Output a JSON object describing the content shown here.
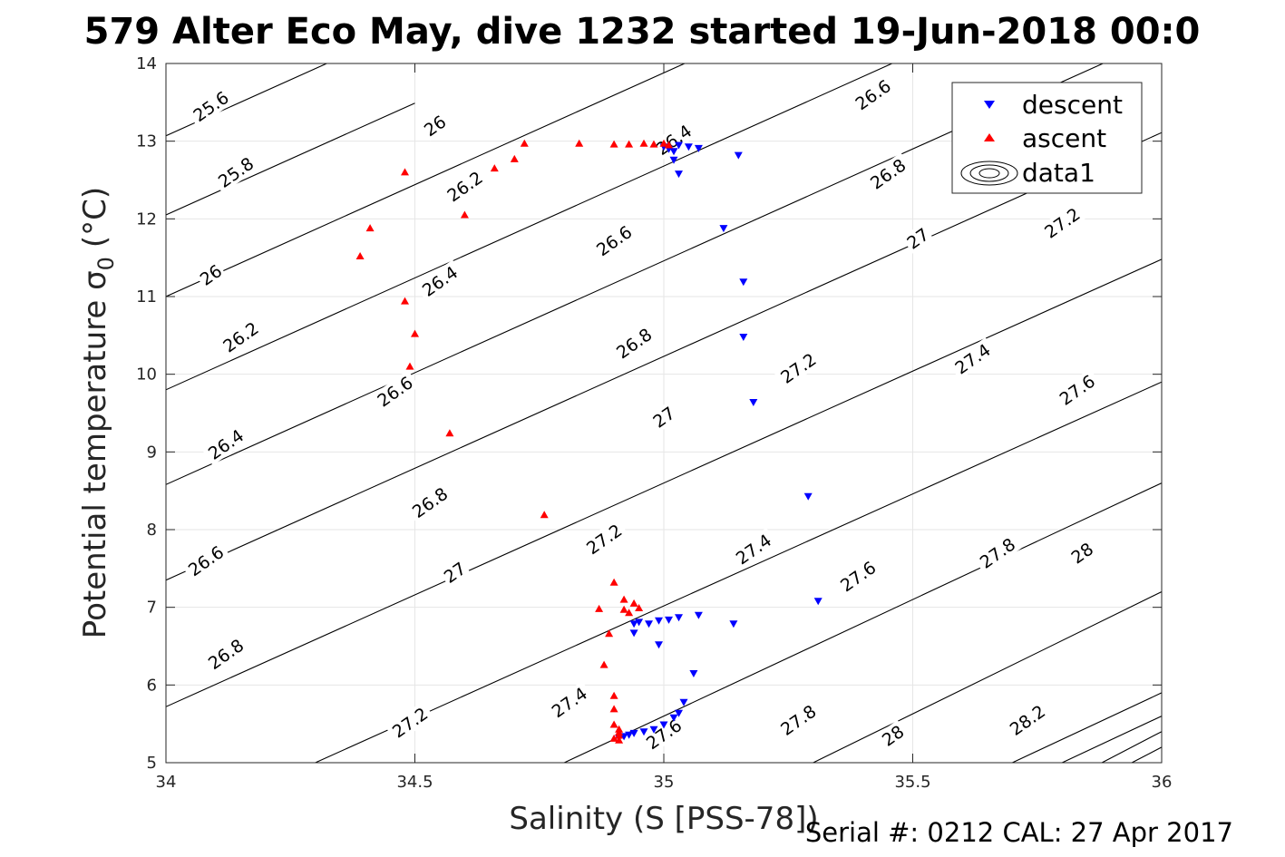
{
  "chart_data": {
    "type": "scatter",
    "title": "579 Alter Eco May, dive 1232 started 19-Jun-2018 00:0",
    "xlabel": "Salinity (S [PSS-78])",
    "ylabel_main": "Potential temperature σ",
    "ylabel_sub": "0",
    "ylabel_unit": "(°C)",
    "xlim": [
      34,
      36
    ],
    "ylim": [
      5,
      14
    ],
    "xticks": [
      34,
      34.5,
      35,
      35.5,
      36
    ],
    "yticks": [
      5,
      6,
      7,
      8,
      9,
      10,
      11,
      12,
      13,
      14
    ],
    "grid": true,
    "legend_position": "top-right",
    "colors": {
      "descent": "#0000ff",
      "ascent": "#ff0000",
      "contour": "#000000"
    },
    "series": [
      {
        "name": "descent",
        "marker": "triangle-down",
        "x": [
          35.0,
          35.01,
          35.02,
          35.03,
          35.05,
          35.07,
          35.15,
          35.02,
          35.03,
          35.12,
          35.16,
          35.16,
          35.18,
          35.29,
          35.31,
          34.94,
          34.95,
          34.97,
          34.99,
          35.01,
          35.03,
          35.07,
          35.14,
          34.94,
          34.99,
          35.06,
          35.04,
          35.03,
          35.02,
          35.0,
          34.98,
          34.96,
          34.94,
          34.93,
          34.92,
          34.91
        ],
        "y": [
          12.93,
          12.9,
          12.87,
          12.95,
          12.93,
          12.91,
          12.82,
          12.76,
          12.58,
          11.88,
          11.19,
          10.48,
          9.64,
          8.43,
          7.08,
          6.79,
          6.81,
          6.79,
          6.83,
          6.84,
          6.87,
          6.9,
          6.79,
          6.67,
          6.52,
          6.15,
          5.78,
          5.64,
          5.58,
          5.49,
          5.43,
          5.4,
          5.38,
          5.36,
          5.34,
          5.32
        ]
      },
      {
        "name": "ascent",
        "marker": "triangle-up",
        "x": [
          34.72,
          34.83,
          34.9,
          34.93,
          34.96,
          34.98,
          35.0,
          35.01,
          34.7,
          34.66,
          34.6,
          34.48,
          34.41,
          34.39,
          34.48,
          34.5,
          34.49,
          34.57,
          34.76,
          34.9,
          34.92,
          34.87,
          34.94,
          34.95,
          34.93,
          34.92,
          34.89,
          34.88,
          34.9,
          34.9,
          34.9,
          34.91,
          34.91,
          34.91,
          34.9,
          34.91
        ],
        "y": [
          12.97,
          12.97,
          12.96,
          12.96,
          12.97,
          12.96,
          12.97,
          12.95,
          12.77,
          12.65,
          12.05,
          12.6,
          11.88,
          11.52,
          10.94,
          10.52,
          10.1,
          9.24,
          8.19,
          7.32,
          7.1,
          6.98,
          7.05,
          6.99,
          6.93,
          6.97,
          6.66,
          6.26,
          5.86,
          5.69,
          5.49,
          5.43,
          5.39,
          5.35,
          5.31,
          5.29
        ]
      }
    ],
    "contours": [
      {
        "label": "25.6",
        "x": [
          34.0,
          34.5
        ],
        "y": [
          13.07,
          14.51
        ]
      },
      {
        "label": "25.8",
        "x": [
          34.0,
          34.5
        ],
        "y": [
          12.05,
          13.49
        ]
      },
      {
        "label": "26",
        "x": [
          34.0,
          36.0
        ],
        "y": [
          11.0,
          16.76
        ]
      },
      {
        "label": "26.2",
        "x": [
          34.0,
          36.0
        ],
        "y": [
          9.8,
          15.56
        ]
      },
      {
        "label": "26.4",
        "x": [
          34.0,
          36.0
        ],
        "y": [
          8.58,
          14.34
        ]
      },
      {
        "label": "26.6",
        "x": [
          34.0,
          36.0
        ],
        "y": [
          7.35,
          13.11
        ]
      },
      {
        "label": "26.8",
        "x": [
          34.0,
          36.0
        ],
        "y": [
          5.72,
          11.48
        ]
      },
      {
        "label": "27",
        "x": [
          34.3,
          36.0
        ],
        "y": [
          5.0,
          9.9
        ]
      },
      {
        "label": "27.2",
        "x": [
          34.8,
          36.0
        ],
        "y": [
          5.0,
          8.6
        ]
      },
      {
        "label": "27.4",
        "x": [
          35.3,
          36.0
        ],
        "y": [
          5.0,
          7.2
        ]
      },
      {
        "label": "27.6",
        "x": [
          35.7,
          36.0
        ],
        "y": [
          5.0,
          5.9
        ]
      },
      {
        "label": "27.8",
        "x": [
          35.8,
          36.0
        ],
        "y": [
          5.0,
          5.6
        ]
      },
      {
        "label": "28",
        "x": [
          35.88,
          36.0
        ],
        "y": [
          5.0,
          5.4
        ]
      },
      {
        "label": "28.2",
        "x": [
          35.94,
          36.0
        ],
        "y": [
          5.0,
          5.2
        ]
      }
    ],
    "contour_labels": [
      {
        "text": "25.6",
        "x": 34.09,
        "y": 13.45
      },
      {
        "text": "25.8",
        "x": 34.14,
        "y": 12.6
      },
      {
        "text": "26",
        "x": 34.54,
        "y": 13.2
      },
      {
        "text": "26",
        "x": 34.09,
        "y": 11.28
      },
      {
        "text": "26.2",
        "x": 34.6,
        "y": 12.42
      },
      {
        "text": "26.2",
        "x": 34.15,
        "y": 10.48
      },
      {
        "text": "26.4",
        "x": 34.55,
        "y": 11.2
      },
      {
        "text": "26.4",
        "x": 34.12,
        "y": 9.1
      },
      {
        "text": "26.6",
        "x": 34.46,
        "y": 9.78
      },
      {
        "text": "26.6",
        "x": 34.08,
        "y": 7.6
      },
      {
        "text": "26.8",
        "x": 34.53,
        "y": 8.35
      },
      {
        "text": "26.8",
        "x": 34.12,
        "y": 6.4
      },
      {
        "text": "27",
        "x": 34.58,
        "y": 7.45
      },
      {
        "text": "27.2",
        "x": 34.49,
        "y": 5.52
      },
      {
        "text": "27.2",
        "x": 34.88,
        "y": 7.88
      },
      {
        "text": "27.4",
        "x": 34.81,
        "y": 5.78
      },
      {
        "text": "27.6",
        "x": 35.0,
        "y": 5.37
      },
      {
        "text": "26.4",
        "x": 35.02,
        "y": 13.02
      },
      {
        "text": "26.6",
        "x": 34.9,
        "y": 11.72
      },
      {
        "text": "26.8",
        "x": 34.94,
        "y": 10.4
      },
      {
        "text": "27",
        "x": 35.0,
        "y": 9.45
      },
      {
        "text": "27.2",
        "x": 35.27,
        "y": 10.08
      },
      {
        "text": "27.4",
        "x": 35.18,
        "y": 7.75
      },
      {
        "text": "27.6",
        "x": 35.39,
        "y": 7.4
      },
      {
        "text": "27.8",
        "x": 35.27,
        "y": 5.55
      },
      {
        "text": "28",
        "x": 35.46,
        "y": 5.35
      },
      {
        "text": "26.6",
        "x": 35.42,
        "y": 13.6
      },
      {
        "text": "26.8",
        "x": 35.45,
        "y": 12.58
      },
      {
        "text": "27",
        "x": 35.51,
        "y": 11.75
      },
      {
        "text": "27.2",
        "x": 35.8,
        "y": 11.95
      },
      {
        "text": "27.4",
        "x": 35.62,
        "y": 10.2
      },
      {
        "text": "27.6",
        "x": 35.83,
        "y": 9.8
      },
      {
        "text": "27.8",
        "x": 35.67,
        "y": 7.7
      },
      {
        "text": "28",
        "x": 35.84,
        "y": 7.7
      },
      {
        "text": "28.2",
        "x": 35.73,
        "y": 5.55
      }
    ],
    "legend": [
      {
        "label": "descent",
        "symbol": "triangle-down"
      },
      {
        "label": "ascent",
        "symbol": "triangle-up"
      },
      {
        "label": "data1",
        "symbol": "contour"
      }
    ],
    "footer": "Serial #: 0212  CAL: 27 Apr 2017"
  }
}
